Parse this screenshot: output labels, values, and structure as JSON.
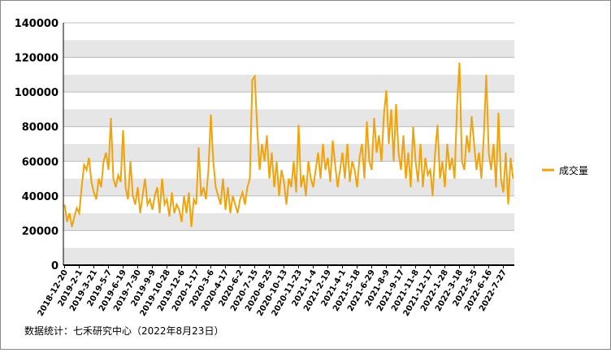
{
  "chart_data": {
    "type": "line",
    "categories": [
      "2018-12-20",
      null,
      null,
      null,
      null,
      null,
      "2019-2-1",
      null,
      null,
      null,
      null,
      null,
      "2019-3-21",
      null,
      null,
      null,
      null,
      null,
      "2019-5-7",
      null,
      null,
      null,
      null,
      null,
      "2019-6-19",
      null,
      null,
      null,
      null,
      null,
      "2019-7-30",
      null,
      null,
      null,
      null,
      null,
      "2019-9-9",
      null,
      null,
      null,
      null,
      null,
      "2019-10-28",
      null,
      null,
      null,
      null,
      null,
      "2019-12-6",
      null,
      null,
      null,
      null,
      null,
      "2020-1-17",
      null,
      null,
      null,
      null,
      null,
      "2020-3-6",
      null,
      null,
      null,
      null,
      null,
      "2020-4-17",
      null,
      null,
      null,
      null,
      null,
      "2020-6-2",
      null,
      null,
      null,
      null,
      null,
      "2020-7-15",
      null,
      null,
      null,
      null,
      null,
      "2020-8-25",
      null,
      null,
      null,
      null,
      null,
      "2020-10-13",
      null,
      null,
      null,
      null,
      null,
      "2020-11-23",
      null,
      null,
      null,
      null,
      null,
      "2021-1-4",
      null,
      null,
      null,
      null,
      null,
      "2021-2-19",
      null,
      null,
      null,
      null,
      null,
      "2021-4-1",
      null,
      null,
      null,
      null,
      null,
      "2021-5-18",
      null,
      null,
      null,
      null,
      null,
      "2021-6-29",
      null,
      null,
      null,
      null,
      null,
      "2021-8-9",
      null,
      null,
      null,
      null,
      null,
      "2021-9-17",
      null,
      null,
      null,
      null,
      null,
      "2021-11-8",
      null,
      null,
      null,
      null,
      null,
      "2021-12-17",
      null,
      null,
      null,
      null,
      null,
      "2022-1-28",
      null,
      null,
      null,
      null,
      null,
      "2022-3-18",
      null,
      null,
      null,
      null,
      null,
      "2022-5-5",
      null,
      null,
      null,
      null,
      null,
      "2022-6-16",
      null,
      null,
      null,
      null,
      null,
      "2022-7-27",
      null,
      null,
      null,
      null
    ],
    "series": [
      {
        "name": "成交量",
        "color": "#f0a30a",
        "values": [
          35000,
          25000,
          30000,
          22000,
          28000,
          33000,
          30000,
          45000,
          58000,
          55000,
          62000,
          48000,
          42000,
          38000,
          50000,
          45000,
          60000,
          65000,
          55000,
          85000,
          50000,
          45000,
          52000,
          48000,
          78000,
          45000,
          38000,
          60000,
          40000,
          35000,
          45000,
          30000,
          40000,
          50000,
          35000,
          38000,
          32000,
          40000,
          45000,
          30000,
          50000,
          35000,
          38000,
          28000,
          42000,
          30000,
          35000,
          32000,
          25000,
          40000,
          30000,
          42000,
          22000,
          38000,
          35000,
          68000,
          40000,
          45000,
          38000,
          55000,
          87000,
          60000,
          45000,
          40000,
          35000,
          50000,
          32000,
          45000,
          30000,
          40000,
          35000,
          30000,
          38000,
          42000,
          35000,
          45000,
          50000,
          107000,
          109000,
          80000,
          55000,
          70000,
          60000,
          75000,
          50000,
          65000,
          45000,
          60000,
          40000,
          55000,
          48000,
          35000,
          50000,
          45000,
          60000,
          42000,
          81000,
          45000,
          52000,
          40000,
          60000,
          50000,
          45000,
          55000,
          65000,
          50000,
          70000,
          55000,
          62000,
          48000,
          72000,
          58000,
          45000,
          55000,
          65000,
          50000,
          70000,
          48000,
          60000,
          55000,
          45000,
          62000,
          70000,
          50000,
          83000,
          60000,
          55000,
          85000,
          65000,
          75000,
          60000,
          87000,
          101000,
          70000,
          90000,
          60000,
          93000,
          65000,
          55000,
          75000,
          50000,
          65000,
          45000,
          80000,
          60000,
          48000,
          70000,
          45000,
          62000,
          52000,
          55000,
          40000,
          65000,
          81000,
          50000,
          60000,
          45000,
          70000,
          55000,
          62000,
          50000,
          92000,
          117000,
          60000,
          55000,
          75000,
          65000,
          86000,
          70000,
          55000,
          65000,
          50000,
          75000,
          110000,
          65000,
          55000,
          70000,
          45000,
          88000,
          50000,
          42000,
          65000,
          35000,
          62000,
          50000
        ]
      }
    ],
    "ylim": [
      0,
      140000
    ],
    "yticks": [
      0,
      20000,
      40000,
      60000,
      80000,
      100000,
      120000,
      140000
    ],
    "legend": "right",
    "grid": true,
    "footnote": "数据统计：七禾研究中心（2022年8月23日）"
  }
}
